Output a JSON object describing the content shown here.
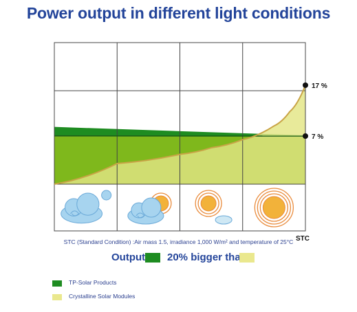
{
  "colors": {
    "tp_solar": "#1e8c21",
    "tp_solar_fill": "#7fb81c",
    "crystalline": "#eae88e",
    "crystalline_fill": "#cfe06a",
    "curve": "#c9a446",
    "grid": "#444444"
  },
  "labels": {
    "stc_axis": "STC",
    "note": "STC (Standard Condition) :Air mass 1.5, irradiance 1,000 W/m² and temperature of 25°C",
    "output": "Output",
    "bigger": "20% bigger than"
  },
  "icons": [
    "cloud-icon",
    "cloud-sun-icon",
    "sun-small-cloud-icon",
    "sun-icon"
  ],
  "chart_data": {
    "type": "area",
    "title": "Power output in different light conditions",
    "x_categories": [
      "cloudy",
      "partly cloudy",
      "mostly sunny",
      "sunny (STC)"
    ],
    "xlim": [
      0,
      4
    ],
    "series": [
      {
        "name": "TP-Solar Products",
        "x": [
          0,
          4
        ],
        "y": [
          8.8,
          7.0
        ]
      },
      {
        "name": "Crystalline Solar Modules",
        "x": [
          0,
          1,
          2,
          2.5,
          3,
          3.5,
          3.75,
          4
        ],
        "y": [
          0,
          1.6,
          3.4,
          4.7,
          6.3,
          9.0,
          11.8,
          17.0
        ]
      }
    ],
    "annotations": [
      {
        "label": "17 %",
        "value": 17
      },
      {
        "label": "7 %",
        "value": 7
      }
    ],
    "legend": [
      {
        "label": "TP-Solar Products",
        "color": "#1e8c21"
      },
      {
        "label": "Crystalline Solar Modules",
        "color": "#eae88e"
      }
    ],
    "legend_placement": "bottom-left",
    "grid": true
  }
}
